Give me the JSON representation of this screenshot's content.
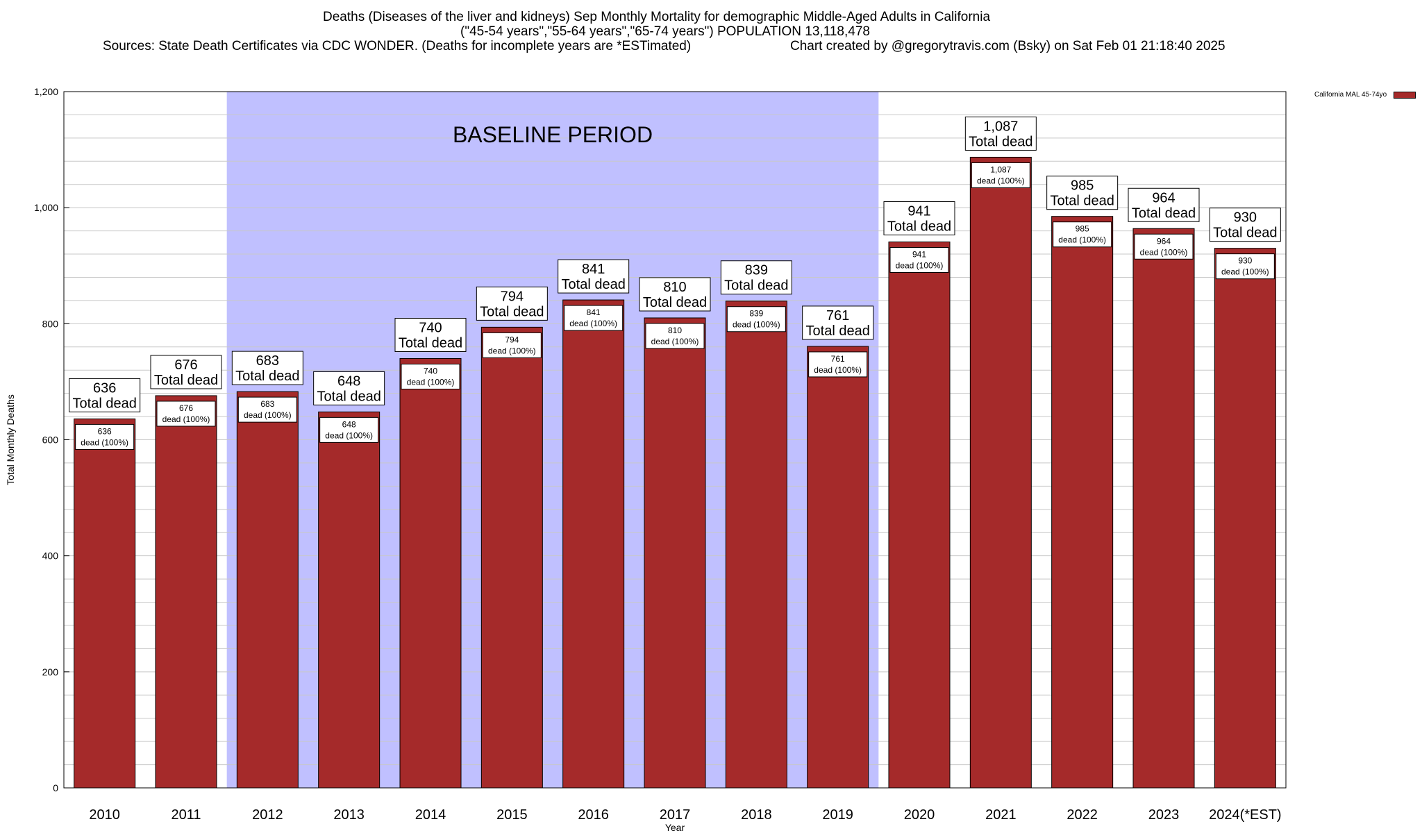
{
  "title": {
    "line1": "Deaths (Diseases of the liver and kidneys) Sep Monthly Mortality for demographic Middle-Aged Adults in California",
    "line2": "(\"45-54 years\",\"55-64 years\",\"65-74 years\") POPULATION 13,118,478",
    "line3_left": "Sources: State Death Certificates via CDC WONDER. (Deaths for incomplete years are *ESTimated)",
    "line3_right": "Chart created by @gregorytravis.com (Bsky) on Sat Feb 01 21:18:40 2025"
  },
  "legend": {
    "label": "California MAL 45-74yo"
  },
  "colors": {
    "bar": "#a52a2a",
    "baseline_band": "#c0c0ff",
    "grid": "#c8c8c8"
  },
  "chart_data": {
    "type": "bar",
    "xlabel": "Year",
    "ylabel": "Total Monthly Deaths",
    "ylim": [
      0,
      1200
    ],
    "ytick_values": [
      0,
      200,
      400,
      600,
      800,
      1000,
      1200
    ],
    "ytick_labels": [
      "0",
      "200",
      "400",
      "600",
      "800",
      "1,000",
      "1,200"
    ],
    "minor_grid_step": 40,
    "grid": true,
    "legend_position": "top-right",
    "categories": [
      "2010",
      "2011",
      "2012",
      "2013",
      "2014",
      "2015",
      "2016",
      "2017",
      "2018",
      "2019",
      "2020",
      "2021",
      "2022",
      "2023",
      "2024(*EST)"
    ],
    "series": [
      {
        "name": "California MAL 45-74yo",
        "values": [
          636,
          676,
          683,
          648,
          740,
          794,
          841,
          810,
          839,
          761,
          941,
          1087,
          985,
          964,
          930
        ]
      }
    ],
    "value_labels": [
      "636",
      "676",
      "683",
      "648",
      "740",
      "794",
      "841",
      "810",
      "839",
      "761",
      "941",
      "1,087",
      "985",
      "964",
      "930"
    ],
    "top_label_suffix": "Total dead",
    "inner_label_suffix": "dead (100%)",
    "annotation": {
      "text": "BASELINE PERIOD",
      "start_category": "2012",
      "end_category": "2019"
    }
  }
}
